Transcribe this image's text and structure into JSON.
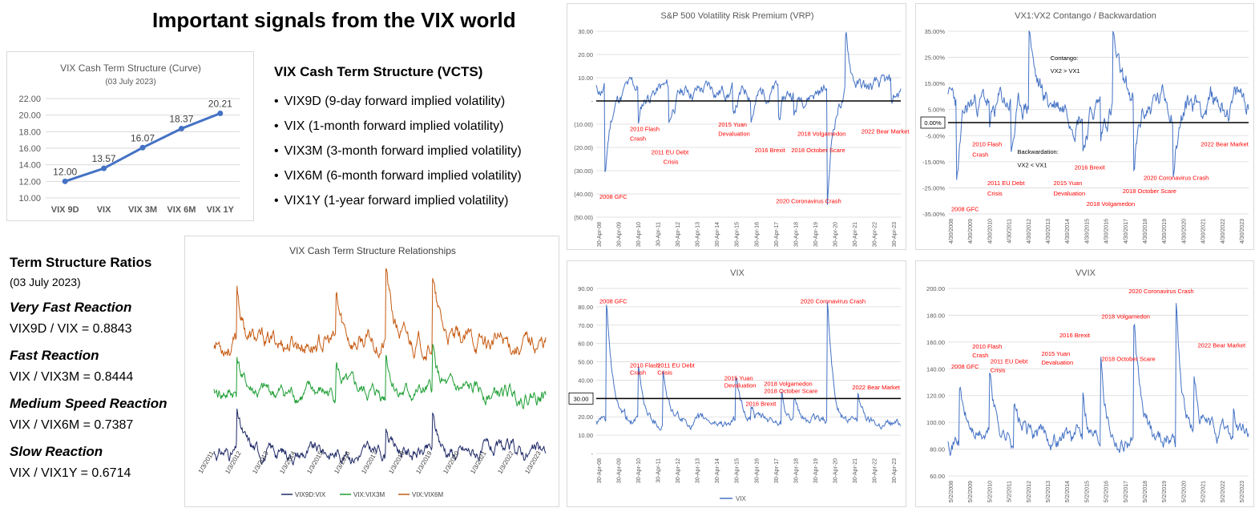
{
  "page": {
    "title": "Important signals from the VIX world"
  },
  "vcts": {
    "title": "VIX Cash Term Structure (VCTS)",
    "items": [
      "VIX9D (9-day forward implied volatility)",
      "VIX (1-month forward implied  volatility)",
      "VIX3M (3-month forward implied volatility)",
      "VIX6M (6-month forward implied volatility)",
      "VIX1Y (1-year forward implied volatility)"
    ]
  },
  "ratios": {
    "title": "Term Structure Ratios",
    "date": "(03 July 2023)",
    "rows": [
      {
        "label": "Very Fast Reaction",
        "value": "VIX9D / VIX = 0.8843"
      },
      {
        "label": "Fast Reaction",
        "value": "VIX / VIX3M = 0.8444"
      },
      {
        "label": "Medium Speed Reaction",
        "value": "VIX / VIX6M = 0.7387"
      },
      {
        "label": "Slow Reaction",
        "value": "VIX / VIX1Y = 0.6714"
      }
    ]
  },
  "colors": {
    "blue": "#4472c4",
    "red": "#ff0000",
    "brown": "#c55a11",
    "green": "#1e9e34",
    "navy": "#1f2a66",
    "grid": "#d9d9d9"
  },
  "chart_data": [
    {
      "id": "curve",
      "type": "line",
      "title": "VIX Cash Term Structure (Curve)",
      "subtitle": "(03 July 2023)",
      "categories": [
        "VIX 9D",
        "VIX",
        "VIX 3M",
        "VIX 6M",
        "VIX 1Y"
      ],
      "series": [
        {
          "values": [
            12.0,
            13.57,
            16.07,
            18.37,
            20.21
          ]
        }
      ],
      "data_labels": [
        "12.00",
        "13.57",
        "16.07",
        "18.37",
        "20.21"
      ],
      "ylim": [
        10,
        22
      ],
      "yticks": [
        "10.00",
        "12.00",
        "14.00",
        "16.00",
        "18.00",
        "20.00",
        "22.00"
      ],
      "grid": true
    },
    {
      "id": "vrp",
      "type": "line",
      "title": "S&P 500 Volatility Risk Premium (VRP)",
      "ylim": [
        -50,
        30
      ],
      "yticks": [
        "(50.00)",
        "(40.00)",
        "(30.00)",
        "(20.00)",
        "(10.00)",
        "-",
        "10.00",
        "20.00",
        "30.00"
      ],
      "xticks": [
        "30-Apr-08",
        "30-Apr-09",
        "30-Apr-10",
        "30-Apr-11",
        "30-Apr-12",
        "30-Apr-13",
        "30-Apr-14",
        "30-Apr-15",
        "30-Apr-16",
        "30-Apr-17",
        "30-Apr-18",
        "30-Apr-19",
        "30-Apr-20",
        "30-Apr-21",
        "30-Apr-22",
        "30-Apr-23"
      ],
      "series": [
        {
          "base": 5,
          "noise": 4,
          "seed": 11,
          "events": [
            [
              0.03,
              -38
            ],
            [
              0.14,
              -14
            ],
            [
              0.24,
              -16
            ],
            [
              0.45,
              -12
            ],
            [
              0.51,
              -10
            ],
            [
              0.6,
              -14
            ],
            [
              0.65,
              -10
            ],
            [
              0.76,
              -48
            ],
            [
              0.82,
              22
            ],
            [
              0.97,
              -8
            ]
          ]
        }
      ],
      "hline": 0,
      "grid": true,
      "annotations": [
        {
          "text": "2008 GFC",
          "x": 0.0,
          "y": -42
        },
        {
          "text": "2010 Flash",
          "x": 0.1,
          "y": -13
        },
        {
          "text": "Crash",
          "x": 0.1,
          "y": -17
        },
        {
          "text": "2011 EU Debt",
          "x": 0.17,
          "y": -23
        },
        {
          "text": "Crisis",
          "x": 0.21,
          "y": -27
        },
        {
          "text": "2015 Yuan",
          "x": 0.39,
          "y": -11
        },
        {
          "text": "Devaluation",
          "x": 0.39,
          "y": -15
        },
        {
          "text": "2016 Brexit",
          "x": 0.51,
          "y": -22
        },
        {
          "text": "2018 Volgamedon",
          "x": 0.65,
          "y": -15
        },
        {
          "text": "2018 October Scare",
          "x": 0.63,
          "y": -22
        },
        {
          "text": "2020 Coronavirus Crash",
          "x": 0.58,
          "y": -44
        },
        {
          "text": "2022 Bear Market",
          "x": 0.86,
          "y": -14
        }
      ]
    },
    {
      "id": "contango",
      "type": "line",
      "title": "VX1:VX2 Contango / Backwardation",
      "ylim": [
        -35,
        35
      ],
      "yticks": [
        "-35.00%",
        "-25.00%",
        "-15.00%",
        "-5.00%",
        "5.00%",
        "15.00%",
        "25.00%",
        "35.00%"
      ],
      "xticks": [
        "4/30/2008",
        "4/30/2009",
        "4/30/2010",
        "4/30/2011",
        "4/30/2012",
        "4/30/2013",
        "4/30/2014",
        "4/30/2015",
        "4/30/2016",
        "4/30/2017",
        "4/30/2018",
        "4/30/2019",
        "4/30/2020",
        "4/30/2021",
        "4/30/2022",
        "4/30/2023"
      ],
      "series": [
        {
          "base": 8,
          "noise": 6,
          "seed": 23,
          "events": [
            [
              0.03,
              -33
            ],
            [
              0.14,
              -12
            ],
            [
              0.21,
              -20
            ],
            [
              0.45,
              -14
            ],
            [
              0.51,
              -15
            ],
            [
              0.62,
              -30
            ],
            [
              0.75,
              -22
            ],
            [
              0.27,
              33
            ],
            [
              0.55,
              28
            ]
          ]
        }
      ],
      "hline": 0,
      "hline_label": "0.00%",
      "grid": true,
      "annotations": [
        {
          "text": "Contango:",
          "x": 0.33,
          "y": 24,
          "color": "#000000"
        },
        {
          "text": "VX2 > VX1",
          "x": 0.33,
          "y": 19,
          "color": "#000000"
        },
        {
          "text": "Backwardation:",
          "x": 0.22,
          "y": -12,
          "color": "#000000"
        },
        {
          "text": "VX2 < VX1",
          "x": 0.22,
          "y": -17,
          "color": "#000000"
        },
        {
          "text": "2010 Flash",
          "x": 0.07,
          "y": -9
        },
        {
          "text": "Crash",
          "x": 0.07,
          "y": -13
        },
        {
          "text": "2011 EU Debt",
          "x": 0.12,
          "y": -24
        },
        {
          "text": "Crisis",
          "x": 0.12,
          "y": -28
        },
        {
          "text": "2016 Brexit",
          "x": 0.41,
          "y": -18
        },
        {
          "text": "2015 Yuan",
          "x": 0.34,
          "y": -24
        },
        {
          "text": "Devaluation",
          "x": 0.34,
          "y": -28
        },
        {
          "text": "2018 Volgamedon",
          "x": 0.45,
          "y": -32
        },
        {
          "text": "2018 October Scare",
          "x": 0.57,
          "y": -27
        },
        {
          "text": "2020 Coronavirus Crash",
          "x": 0.64,
          "y": -22
        },
        {
          "text": "2022 Bear Market",
          "x": 0.83,
          "y": -9
        },
        {
          "text": "2008 GFC",
          "x": 0.0,
          "y": -34
        }
      ]
    },
    {
      "id": "relationships",
      "type": "line",
      "title": "VIX Cash Term Structure Relationships",
      "xticks": [
        "1/3/2011",
        "1/3/2012",
        "1/3/2013",
        "1/3/2014",
        "1/3/2015",
        "1/3/2016",
        "1/3/2017",
        "1/3/2018",
        "1/3/2019",
        "1/3/2020",
        "1/3/2021",
        "1/3/2022",
        "1/3/2023"
      ],
      "series": [
        {
          "name": "VIX9D:VIX",
          "color": "navy",
          "base": 0.85,
          "noise": 0.05,
          "seed": 31,
          "events": [
            [
              0.07,
              0.25
            ],
            [
              0.52,
              0.18
            ],
            [
              0.66,
              0.2
            ]
          ]
        },
        {
          "name": "VIX:VIX3M",
          "color": "green",
          "base": 0.88,
          "noise": 0.06,
          "seed": 41,
          "events": [
            [
              0.07,
              0.28
            ],
            [
              0.37,
              0.22
            ],
            [
              0.52,
              0.3
            ],
            [
              0.66,
              0.3
            ]
          ]
        },
        {
          "name": "VIX:VIX6M",
          "color": "brown",
          "base": 0.82,
          "noise": 0.08,
          "seed": 53,
          "events": [
            [
              0.07,
              0.4
            ],
            [
              0.37,
              0.3
            ],
            [
              0.52,
              0.55
            ],
            [
              0.66,
              0.5
            ]
          ]
        }
      ],
      "legend": "bottom",
      "grid": false
    },
    {
      "id": "vix",
      "type": "line",
      "title": "VIX",
      "ylim": [
        0,
        90
      ],
      "yticks": [
        "-",
        "10.00",
        "20.00",
        "30.00",
        "40.00",
        "50.00",
        "60.00",
        "70.00",
        "80.00",
        "90.00"
      ],
      "xticks": [
        "30-Apr-08",
        "30-Apr-09",
        "30-Apr-10",
        "30-Apr-11",
        "30-Apr-12",
        "30-Apr-13",
        "30-Apr-14",
        "30-Apr-15",
        "30-Apr-16",
        "30-Apr-17",
        "30-Apr-18",
        "30-Apr-19",
        "30-Apr-20",
        "30-Apr-21",
        "30-Apr-22",
        "30-Apr-23"
      ],
      "series": [
        {
          "name": "VIX",
          "base": 17,
          "noise": 3,
          "seed": 61,
          "events": [
            [
              0.035,
              63
            ],
            [
              0.14,
              27
            ],
            [
              0.22,
              30
            ],
            [
              0.46,
              22
            ],
            [
              0.51,
              8
            ],
            [
              0.61,
              18
            ],
            [
              0.65,
              8
            ],
            [
              0.76,
              65
            ],
            [
              0.86,
              16
            ]
          ]
        }
      ],
      "hline": 30,
      "hline_label": "30.00",
      "grid": true,
      "legend": "bottom",
      "annotations": [
        {
          "text": "2008 GFC",
          "x": 0.0,
          "y": 82
        },
        {
          "text": "2010 Flash",
          "x": 0.1,
          "y": 47
        },
        {
          "text": "Crash",
          "x": 0.1,
          "y": 43
        },
        {
          "text": "2011 EU Debt",
          "x": 0.19,
          "y": 47
        },
        {
          "text": "Crisis",
          "x": 0.19,
          "y": 43
        },
        {
          "text": "2015 Yuan",
          "x": 0.41,
          "y": 40
        },
        {
          "text": "Devaluation",
          "x": 0.41,
          "y": 36
        },
        {
          "text": "2018 Volgamedon",
          "x": 0.54,
          "y": 37
        },
        {
          "text": "2018 October Scare",
          "x": 0.54,
          "y": 33
        },
        {
          "text": "2016 Brexit",
          "x": 0.48,
          "y": 26
        },
        {
          "text": "2020 Coronavirus Crash",
          "x": 0.66,
          "y": 82
        },
        {
          "text": "2022 Bear Market",
          "x": 0.83,
          "y": 35
        }
      ]
    },
    {
      "id": "vvix",
      "type": "line",
      "title": "VVIX",
      "ylim": [
        60,
        210
      ],
      "yticks": [
        "60.00",
        "80.00",
        "100.00",
        "120.00",
        "140.00",
        "160.00",
        "180.00",
        "200.00"
      ],
      "xticks": [
        "5/2/2008",
        "5/2/2009",
        "5/2/2010",
        "5/2/2011",
        "5/2/2012",
        "5/2/2013",
        "5/2/2014",
        "5/2/2015",
        "5/2/2016",
        "5/2/2017",
        "5/2/2018",
        "5/2/2019",
        "5/2/2020",
        "5/2/2021",
        "5/2/2022",
        "5/2/2023"
      ],
      "series": [
        {
          "base": 92,
          "noise": 9,
          "seed": 71,
          "events": [
            [
              0.04,
              40
            ],
            [
              0.14,
              50
            ],
            [
              0.22,
              30
            ],
            [
              0.45,
              40
            ],
            [
              0.51,
              75
            ],
            [
              0.62,
              85
            ],
            [
              0.76,
              110
            ],
            [
              0.82,
              40
            ],
            [
              0.95,
              20
            ]
          ]
        }
      ],
      "grid": true,
      "annotations": [
        {
          "text": "2020 Coronavirus Crash",
          "x": 0.59,
          "y": 206
        },
        {
          "text": "2008 GFC",
          "x": 0.0,
          "y": 146
        },
        {
          "text": "2010 Flash",
          "x": 0.07,
          "y": 162
        },
        {
          "text": "Crash",
          "x": 0.07,
          "y": 155
        },
        {
          "text": "2011 EU Debt",
          "x": 0.13,
          "y": 150
        },
        {
          "text": "Crisis",
          "x": 0.13,
          "y": 143
        },
        {
          "text": "2015 Yuan",
          "x": 0.3,
          "y": 156
        },
        {
          "text": "Devaluation",
          "x": 0.3,
          "y": 149
        },
        {
          "text": "2016 Brexit",
          "x": 0.36,
          "y": 171
        },
        {
          "text": "2018 Volgamedon",
          "x": 0.5,
          "y": 186
        },
        {
          "text": "2018 October Scare",
          "x": 0.5,
          "y": 152
        },
        {
          "text": "2022 Bear Market",
          "x": 0.82,
          "y": 163
        }
      ]
    }
  ]
}
